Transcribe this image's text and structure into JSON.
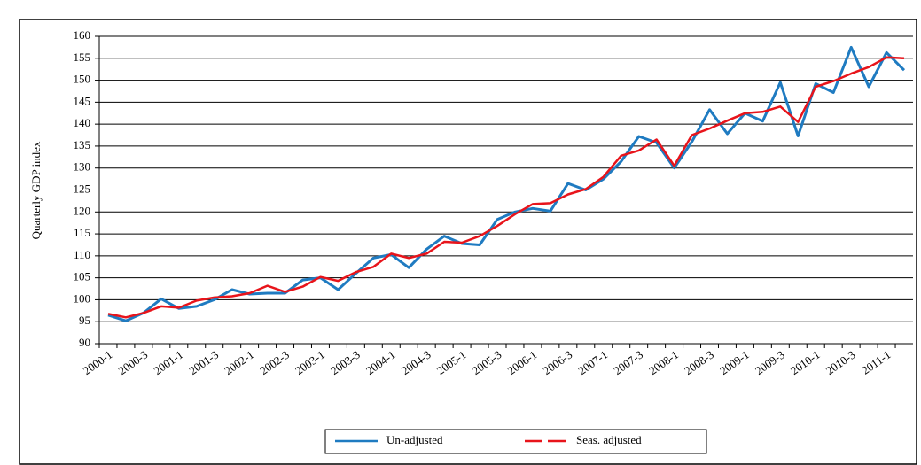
{
  "chart_data": {
    "type": "line",
    "y_label": "Quarterly GDP index",
    "categories": [
      "2000-1",
      null,
      "2000-3",
      null,
      "2001-1",
      null,
      "2001-3",
      null,
      "2002-1",
      null,
      "2002-3",
      null,
      "2003-1",
      null,
      "2003-3",
      null,
      "2004-1",
      null,
      "2004-3",
      null,
      "2005-1",
      null,
      "2005-3",
      null,
      "2006-1",
      null,
      "2006-3",
      null,
      "2007-1",
      null,
      "2007-3",
      null,
      "2008-1",
      null,
      "2008-3",
      null,
      "2009-1",
      null,
      "2009-3",
      null,
      "2010-1",
      null,
      "2010-3",
      null,
      "2011-1",
      null
    ],
    "series": [
      {
        "name": "Un-adjusted",
        "color": "#1f7bc1",
        "values": [
          96.5,
          95.2,
          97,
          100.2,
          98,
          98.5,
          100,
          102.3,
          101.3,
          101.5,
          101.5,
          104.5,
          105,
          102.3,
          106,
          109.5,
          110.3,
          107.3,
          111.5,
          114.5,
          112.8,
          112.5,
          118.3,
          120,
          120.8,
          120.2,
          126.5,
          125,
          127.5,
          131.5,
          137.2,
          135.8,
          130,
          136,
          143.3,
          137.8,
          142.5,
          140.7,
          149.5,
          137.3,
          149.2,
          147.2,
          157.5,
          148.5,
          156.3,
          152.3
        ]
      },
      {
        "name": "Seas. adjusted",
        "color": "#e8141b",
        "values": [
          96.8,
          96,
          97,
          98.5,
          98.2,
          99.8,
          100.5,
          100.8,
          101.5,
          103.2,
          101.8,
          103,
          105.2,
          104.3,
          106.3,
          107.5,
          110.5,
          109.5,
          110.5,
          113.2,
          113,
          114.5,
          116.8,
          119.5,
          121.8,
          122,
          124,
          125.2,
          128,
          132.8,
          134,
          136.5,
          130.5,
          137.5,
          139,
          140.8,
          142.5,
          142.8,
          144,
          140.5,
          148.5,
          149.8,
          151.5,
          153,
          155.2,
          155
        ]
      }
    ],
    "ylim": [
      90,
      160
    ],
    "yticks": [
      90,
      95,
      100,
      105,
      110,
      115,
      120,
      125,
      130,
      135,
      140,
      145,
      150,
      155,
      160
    ],
    "grid": true
  }
}
